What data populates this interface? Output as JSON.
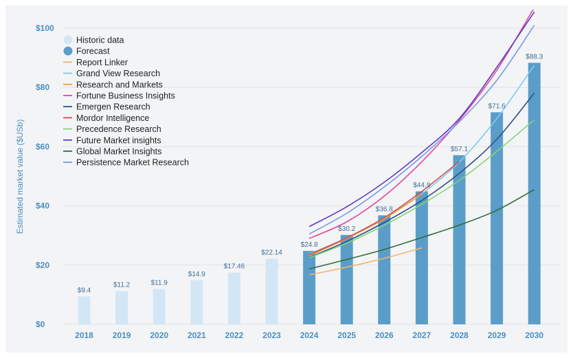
{
  "chart_data": {
    "type": "bar",
    "title": "",
    "xlabel": "",
    "ylabel": "Estimated market value ($USb)",
    "ylim": [
      0,
      100
    ],
    "y_ticks": [
      0,
      20,
      40,
      60,
      80,
      100
    ],
    "y_tick_labels": [
      "$0",
      "$20",
      "$40",
      "$60",
      "$80",
      "$100"
    ],
    "categories": [
      "2018",
      "2019",
      "2020",
      "2021",
      "2022",
      "2023",
      "2024",
      "2025",
      "2026",
      "2027",
      "2028",
      "2029",
      "2030"
    ],
    "bar_series": [
      {
        "name": "Historic data",
        "color": "#d3e6f6",
        "x": [
          "2018",
          "2019",
          "2020",
          "2021",
          "2022",
          "2023"
        ],
        "values": [
          9.4,
          11.2,
          11.9,
          14.9,
          17.46,
          22.14
        ],
        "labels": [
          "$9.4",
          "$11.2",
          "$11.9",
          "$14.9",
          "$17.46",
          "$22.14"
        ]
      },
      {
        "name": "Forecast",
        "color": "#5b9dc9",
        "x": [
          "2024",
          "2025",
          "2026",
          "2027",
          "2028",
          "2029",
          "2030"
        ],
        "values": [
          24.8,
          30.2,
          36.8,
          44.9,
          57.1,
          71.6,
          88.3
        ],
        "labels": [
          "$24.8",
          "$30.2",
          "$36.8",
          "$44.9",
          "$57.1",
          "$71.6",
          "$88.3"
        ]
      }
    ],
    "line_series": [
      {
        "name": "Report Linker",
        "color": "#f2b56b",
        "x": [
          "2024",
          "2025",
          "2026",
          "2027"
        ],
        "values": [
          16.7,
          19.3,
          22.3,
          25.8
        ]
      },
      {
        "name": "Grand View Research",
        "color": "#7fcbef",
        "x": [
          "2024",
          "2025",
          "2026",
          "2027",
          "2028",
          "2029",
          "2030"
        ],
        "values": [
          23.8,
          29.2,
          35.9,
          44.1,
          54.8,
          69.5,
          87.5
        ]
      },
      {
        "name": "Research and Markets",
        "color": "#e8a13c",
        "x": [
          "2024",
          "2025",
          "2026",
          "2027"
        ],
        "values": [
          23.1,
          29.0,
          35.6,
          44.0
        ]
      },
      {
        "name": "Fortune Business Insights",
        "color": "#e0479e",
        "x": [
          "2024",
          "2025",
          "2026",
          "2027",
          "2028",
          "2029",
          "2030"
        ],
        "values": [
          29.0,
          34.6,
          43.3,
          54.9,
          68.9,
          85.8,
          107.0
        ]
      },
      {
        "name": "Emergen Research",
        "color": "#2e4f86",
        "x": [
          "2024",
          "2025",
          "2026",
          "2027",
          "2028",
          "2029",
          "2030"
        ],
        "values": [
          22.6,
          28.0,
          34.4,
          41.8,
          51.0,
          62.5,
          78.1
        ]
      },
      {
        "name": "Mordor Intelligence",
        "color": "#d94a4a",
        "x": [
          "2024",
          "2025",
          "2026",
          "2027",
          "2028"
        ],
        "values": [
          23.5,
          29.2,
          36.0,
          44.9,
          55.0
        ]
      },
      {
        "name": "Precedence Research",
        "color": "#7fd67a",
        "x": [
          "2024",
          "2025",
          "2026",
          "2027",
          "2028",
          "2029",
          "2030"
        ],
        "values": [
          22.5,
          27.4,
          33.5,
          40.5,
          48.6,
          58.4,
          69.1
        ]
      },
      {
        "name": "Future Market insights",
        "color": "#5b3dbf",
        "x": [
          "2024",
          "2025",
          "2026",
          "2027",
          "2028",
          "2029",
          "2030"
        ],
        "values": [
          33.0,
          39.7,
          48.0,
          58.0,
          69.5,
          86.8,
          105.5
        ]
      },
      {
        "name": "Global Market Insights",
        "color": "#2f6e3a",
        "x": [
          "2024",
          "2025",
          "2026",
          "2027",
          "2028",
          "2029",
          "2030"
        ],
        "values": [
          18.7,
          21.9,
          25.3,
          29.3,
          33.5,
          38.5,
          45.5
        ]
      },
      {
        "name": "Persistence Market Research",
        "color": "#7a96e8",
        "x": [
          "2024",
          "2025",
          "2026",
          "2027",
          "2028",
          "2029",
          "2030"
        ],
        "values": [
          30.5,
          37.5,
          46.4,
          56.7,
          68.4,
          82.4,
          101.0
        ]
      }
    ],
    "legend_position": "top-left",
    "grid": true
  }
}
